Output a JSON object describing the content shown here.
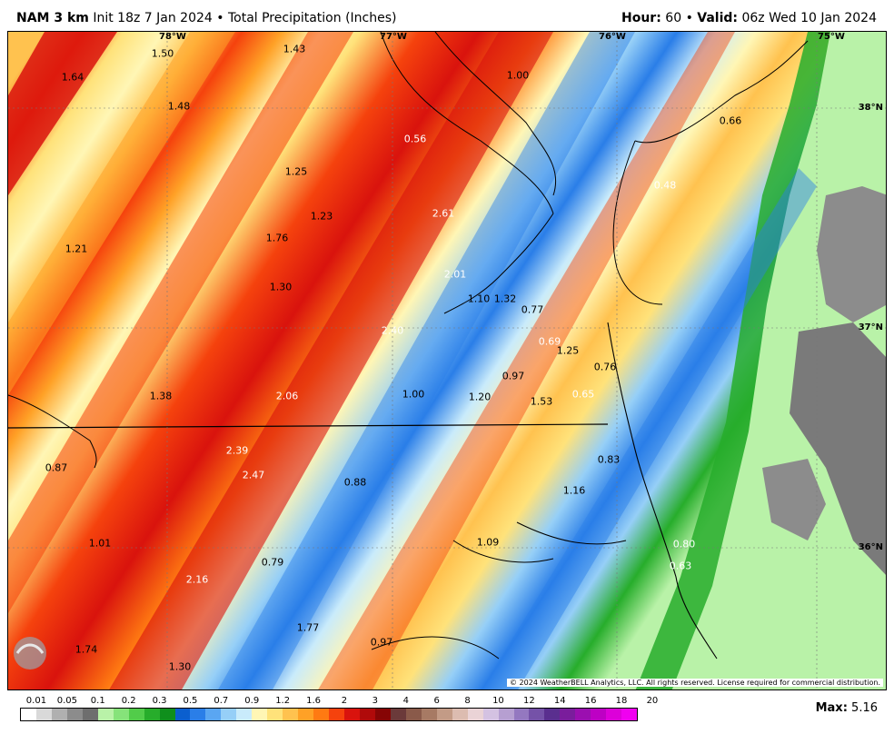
{
  "header": {
    "model": "NAM 3 km",
    "init": "Init 18z 7 Jan 2024",
    "bullet": "•",
    "product": "Total Precipitation (Inches)",
    "hour_label": "Hour",
    "hour_value": "60",
    "valid_label": "Valid",
    "valid_value": "06z Wed 10 Jan 2024"
  },
  "map": {
    "longitude_labels": [
      "78°W",
      "77°W",
      "76°W",
      "75°W"
    ],
    "latitude_labels": [
      "38°N",
      "37°N",
      "36°N"
    ],
    "values": [
      "1.50",
      "1.43",
      "1.64",
      "1.48",
      "1.00",
      "0.66",
      "0.56",
      "1.25",
      "0.48",
      "1.23",
      "2.61",
      "1.21",
      "1.76",
      "2.01",
      "1.30",
      "1.10",
      "1.32",
      "0.77",
      "2.40",
      "0.69",
      "1.25",
      "0.97",
      "0.76",
      "1.38",
      "2.06",
      "1.00",
      "1.20",
      "1.53",
      "0.65",
      "0.87",
      "2.39",
      "2.47",
      "0.88",
      "0.83",
      "1.16",
      "1.01",
      "1.09",
      "0.80",
      "0.79",
      "0.63",
      "2.16",
      "1.77",
      "1.74",
      "0.97",
      "1.30"
    ],
    "copyright": "© 2024 WeatherBELL Analytics, LLC. All rights reserved. License required for commercial distribution.",
    "logo_text": "WEATHERBELL"
  },
  "legend": {
    "labels": [
      "0.01",
      "0.05",
      "0.1",
      "0.2",
      "0.3",
      "0.5",
      "0.7",
      "0.9",
      "1.2",
      "1.6",
      "2",
      "3",
      "4",
      "6",
      "8",
      "10",
      "12",
      "14",
      "16",
      "18",
      "20"
    ],
    "colors": [
      "#ffffff",
      "#d9d9d9",
      "#b0b0b0",
      "#8c8c8c",
      "#6e6e6e",
      "#b9f2a8",
      "#86e37a",
      "#52cc4a",
      "#27ad2b",
      "#0f8f1c",
      "#0b5fcf",
      "#2a7ee8",
      "#5aa6f2",
      "#96cff7",
      "#c9ebfb",
      "#fff6b5",
      "#ffe27a",
      "#ffc24f",
      "#ffa126",
      "#ff7a12",
      "#f5420d",
      "#d9130d",
      "#b00a0a",
      "#860505",
      "#6b3a3a",
      "#8a5a4a",
      "#a77a64",
      "#c39b86",
      "#dcbcb0",
      "#ead3d6",
      "#d4c2e2",
      "#b69fd1",
      "#9478c0",
      "#7552a8",
      "#5a2f8f",
      "#7a1d9c",
      "#9b0fb0",
      "#bd00c4",
      "#dc00d9",
      "#f000f0"
    ],
    "max_label": "Max",
    "max_value": "5.16"
  }
}
